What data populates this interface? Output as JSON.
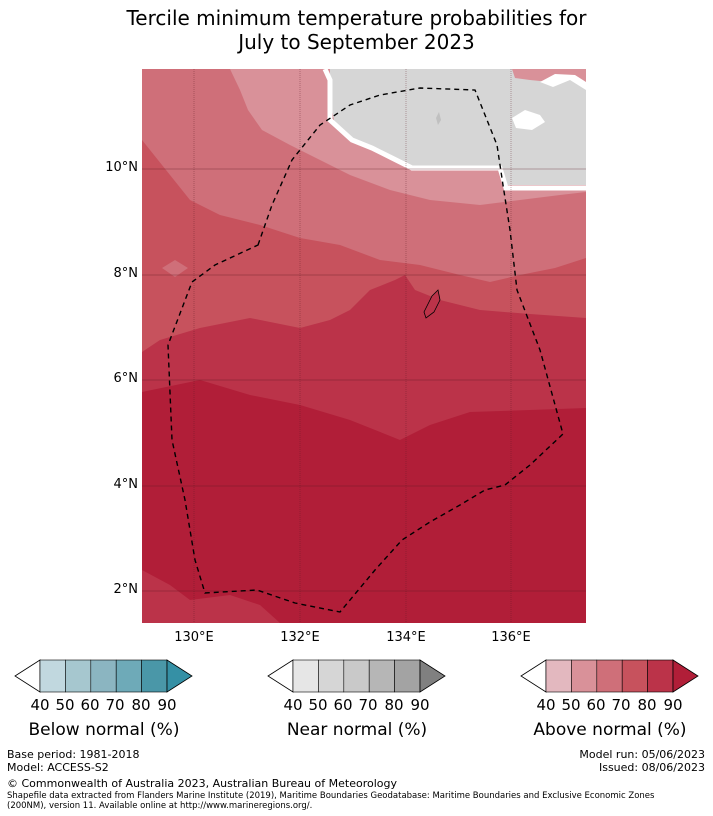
{
  "title": {
    "line1": "Tercile minimum temperature probabilities for",
    "line2": "July to September 2023"
  },
  "map": {
    "lat_labels": [
      "10°N",
      "8°N",
      "6°N",
      "4°N",
      "2°N"
    ],
    "lon_labels": [
      "130°E",
      "132°E",
      "134°E",
      "136°E"
    ],
    "colors": {
      "above_40": "#e3b8bf",
      "above_50": "#d99199",
      "above_60": "#cf6f79",
      "above_70": "#c7525d",
      "above_80": "#bb3349",
      "above_90": "#b11e38",
      "near_40": "#d6d6d6",
      "land": "#cccccc",
      "boundary": "#000000"
    }
  },
  "colorbars": {
    "below": {
      "label": "Below normal (%)",
      "ticks": [
        "40",
        "50",
        "60",
        "70",
        "80",
        "90"
      ],
      "colors": [
        "#ffffff",
        "#c1d8df",
        "#a6c7cf",
        "#8bb5c1",
        "#6eaab8",
        "#4a97a8",
        "#3590a5"
      ]
    },
    "near": {
      "label": "Near normal (%)",
      "ticks": [
        "40",
        "50",
        "60",
        "70",
        "80",
        "90"
      ],
      "colors": [
        "#ffffff",
        "#e6e6e6",
        "#d6d6d6",
        "#c9c9c9",
        "#b6b6b6",
        "#a3a3a3",
        "#808080"
      ]
    },
    "above": {
      "label": "Above normal (%)",
      "ticks": [
        "40",
        "50",
        "60",
        "70",
        "80",
        "90"
      ],
      "colors": [
        "#ffffff",
        "#e3b8bf",
        "#d99199",
        "#cf6f79",
        "#c7525d",
        "#bb3349",
        "#b11e38"
      ]
    }
  },
  "footer": {
    "base_period": "Base period: 1981-2018",
    "model": "Model: ACCESS-S2",
    "model_run": "Model run: 05/06/2023",
    "issued": "Issued: 08/06/2023",
    "copyright": "© Commonwealth of Australia 2023, Australian Bureau of Meteorology",
    "shapefile_line1": "Shapefile data extracted from Flanders Marine Institute (2019), Maritime Boundaries Geodatabase: Maritime Boundaries and Exclusive Economic Zones",
    "shapefile_line2": "(200NM), version 11. Available online at http://www.marineregions.org/."
  }
}
